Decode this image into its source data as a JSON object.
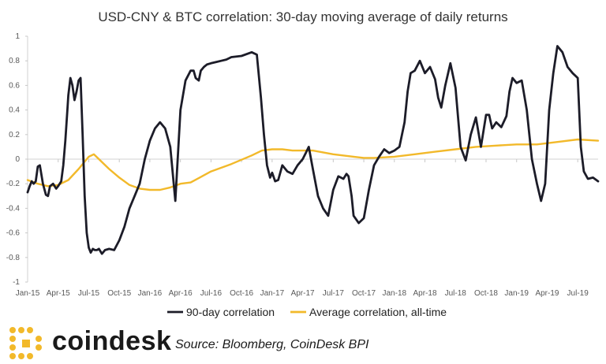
{
  "chart_data": {
    "type": "line",
    "title": "USD-CNY & BTC correlation: 30-day moving average of daily returns",
    "xlabel": "",
    "ylabel": "",
    "ylim": [
      -1,
      1
    ],
    "yticks": [
      "1",
      "0.8",
      "0.6",
      "0.4",
      "0.2",
      "0",
      "-0.2",
      "-0.4",
      "-0.6",
      "-0.8",
      "-1"
    ],
    "xticks": [
      "Jan-15",
      "Apr-15",
      "Jul-15",
      "Oct-15",
      "Jan-16",
      "Apr-16",
      "Jul-16",
      "Oct-16",
      "Jan-17",
      "Apr-17",
      "Jul-17",
      "Oct-17",
      "Jan-18",
      "Apr-18",
      "Jul-18",
      "Oct-18",
      "Jan-19",
      "Apr-19",
      "Jul-19"
    ],
    "x_start": "Jan-15",
    "x_end": "Sep-19",
    "grid": false,
    "legend": "bottom",
    "series": [
      {
        "name": "90-day correlation",
        "color": "#1c1c28",
        "x_month": [
          0,
          0.2,
          0.4,
          0.6,
          0.8,
          1.0,
          1.2,
          1.5,
          1.8,
          2.0,
          2.2,
          2.5,
          2.8,
          3.0,
          3.3,
          3.5,
          3.7,
          3.9,
          4.0,
          4.2,
          4.4,
          4.6,
          4.8,
          5.0,
          5.2,
          5.4,
          5.6,
          5.8,
          6.0,
          6.2,
          6.4,
          6.6,
          6.8,
          7.0,
          7.3,
          7.6,
          8.0,
          8.5,
          9.0,
          9.5,
          10.0,
          10.5,
          11.0,
          11.5,
          12.0,
          12.5,
          13.0,
          13.5,
          14.0,
          14.5,
          15.0,
          15.5,
          16.0,
          16.3,
          16.5,
          16.8,
          17.0,
          17.3,
          17.6,
          18.0,
          18.5,
          19.0,
          19.5,
          20.0,
          21.0,
          22.0,
          22.5,
          22.9,
          23.2,
          23.5,
          23.8,
          24.0,
          24.3,
          24.6,
          25.0,
          25.5,
          26.0,
          26.5,
          27.0,
          27.3,
          27.6,
          28.0,
          28.5,
          29.0,
          29.5,
          30.0,
          30.5,
          31.0,
          31.3,
          31.5,
          31.8,
          32.0,
          32.5,
          33.0,
          33.5,
          34.0,
          34.5,
          35.0,
          35.5,
          36.0,
          36.5,
          37.0,
          37.3,
          37.6,
          38.0,
          38.5,
          39.0,
          39.5,
          40.0,
          40.3,
          40.6,
          41.0,
          41.5,
          42.0,
          42.5,
          43.0,
          43.5,
          44.0,
          44.5,
          45.0,
          45.3,
          45.6,
          46.0,
          46.5,
          47.0,
          47.3,
          47.6,
          48.0,
          48.5,
          49.0,
          49.5,
          50.0,
          50.4,
          50.8,
          51.2,
          51.6,
          52.0,
          52.5,
          53.0,
          53.5,
          54.0,
          54.3,
          54.6,
          55.0,
          55.5,
          56.0
        ],
        "values": [
          -0.27,
          -0.22,
          -0.18,
          -0.2,
          -0.18,
          -0.06,
          -0.05,
          -0.2,
          -0.29,
          -0.3,
          -0.22,
          -0.2,
          -0.24,
          -0.22,
          -0.18,
          -0.05,
          0.15,
          0.4,
          0.52,
          0.66,
          0.6,
          0.48,
          0.55,
          0.64,
          0.66,
          0.2,
          -0.3,
          -0.6,
          -0.72,
          -0.76,
          -0.73,
          -0.74,
          -0.74,
          -0.73,
          -0.77,
          -0.74,
          -0.73,
          -0.74,
          -0.66,
          -0.55,
          -0.4,
          -0.3,
          -0.2,
          0.0,
          0.15,
          0.25,
          0.3,
          0.25,
          0.1,
          -0.34,
          0.4,
          0.64,
          0.72,
          0.72,
          0.66,
          0.64,
          0.72,
          0.75,
          0.77,
          0.78,
          0.79,
          0.8,
          0.81,
          0.83,
          0.84,
          0.87,
          0.85,
          0.5,
          0.2,
          -0.05,
          -0.15,
          -0.11,
          -0.18,
          -0.17,
          -0.05,
          -0.1,
          -0.12,
          -0.05,
          0.0,
          0.05,
          0.1,
          -0.08,
          -0.3,
          -0.4,
          -0.46,
          -0.25,
          -0.14,
          -0.16,
          -0.12,
          -0.14,
          -0.3,
          -0.46,
          -0.52,
          -0.48,
          -0.25,
          -0.05,
          0.02,
          0.08,
          0.05,
          0.07,
          0.1,
          0.3,
          0.55,
          0.7,
          0.72,
          0.8,
          0.7,
          0.75,
          0.65,
          0.5,
          0.42,
          0.6,
          0.78,
          0.58,
          0.1,
          -0.01,
          0.2,
          0.34,
          0.1,
          0.36,
          0.36,
          0.25,
          0.3,
          0.26,
          0.35,
          0.55,
          0.66,
          0.62,
          0.64,
          0.4,
          0.0,
          -0.2,
          -0.34,
          -0.2,
          0.4,
          0.7,
          0.92,
          0.87,
          0.75,
          0.7,
          0.66,
          0.1,
          -0.1,
          -0.16,
          -0.15,
          -0.18
        ]
      },
      {
        "name": "Average correlation, all-time",
        "color": "#f2b92a",
        "x_month": [
          0,
          1,
          2,
          3,
          4,
          5,
          6,
          6.5,
          7,
          8,
          9,
          10,
          11,
          12,
          13,
          14,
          15,
          16,
          18,
          20,
          22,
          23,
          24,
          25,
          26,
          28,
          30,
          32,
          33,
          34,
          36,
          38,
          40,
          42,
          44,
          46,
          48,
          50,
          52,
          54,
          56
        ],
        "values": [
          -0.17,
          -0.2,
          -0.22,
          -0.21,
          -0.17,
          -0.08,
          0.02,
          0.04,
          0.0,
          -0.08,
          -0.15,
          -0.21,
          -0.24,
          -0.25,
          -0.25,
          -0.23,
          -0.2,
          -0.19,
          -0.1,
          -0.04,
          0.03,
          0.07,
          0.08,
          0.08,
          0.07,
          0.07,
          0.04,
          0.02,
          0.01,
          0.01,
          0.02,
          0.04,
          0.06,
          0.08,
          0.1,
          0.11,
          0.12,
          0.12,
          0.14,
          0.16,
          0.15
        ]
      }
    ]
  },
  "footer": {
    "brand": "coindesk",
    "source": "Source: Bloomberg, CoinDesk BPI"
  }
}
